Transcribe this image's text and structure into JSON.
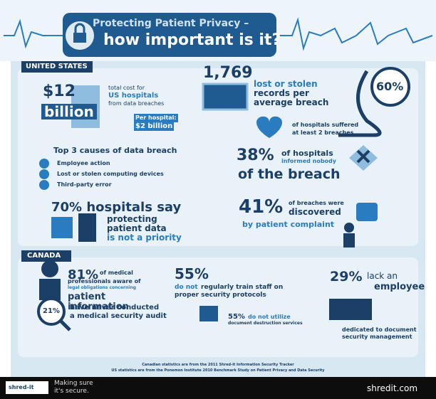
{
  "header": {
    "title_line1": "Protecting Patient Privacy –",
    "title_line2": "how important is it?"
  },
  "us": {
    "label": "UNITED STATES",
    "cost": {
      "amount": "$12",
      "unit": "billion",
      "desc1": "total cost for",
      "desc2": "US hospitals",
      "desc3": "from data breaches",
      "per_label": "Per hospital:",
      "per_value": "$2 billion"
    },
    "records": {
      "number": "1,769",
      "line1": "lost or stolen",
      "line2": "records per",
      "line3": "average breach"
    },
    "repeat": {
      "number": "60%",
      "line1": "of hospitals suffered",
      "line2": "at least 2 breaches"
    },
    "causes": {
      "title": "Top 3 causes of data breach",
      "items": [
        "Employee action",
        "Lost or stolen computing devices",
        "Third-party error"
      ]
    },
    "informed": {
      "number": "38%",
      "line1": "of hospitals",
      "line2": "informed nobody",
      "line3": "of the breach"
    },
    "priority": {
      "headline": "70% hospitals say",
      "line1": "protecting",
      "line2": "patient data",
      "line3": "is not a priority"
    },
    "discovered": {
      "number": "41%",
      "line1": "of breaches were",
      "line2": "discovered",
      "line3": "by patient complaint"
    }
  },
  "canada": {
    "label": "CANADA",
    "aware": {
      "number": "81%",
      "line1": "of medical",
      "line2": "professionals aware of",
      "line3": "legal obligations concerning",
      "line4": "patient",
      "line5": "information"
    },
    "train": {
      "number": "55%",
      "line1": "do not",
      "line2": "regularly train staff on",
      "line3": "proper security protocols"
    },
    "lack": {
      "number": "29%",
      "line1": "lack an",
      "line2": "employee",
      "line3": "dedicated to document",
      "line4": "security management"
    },
    "audit": {
      "number": "21%",
      "line1": "have never conducted",
      "line2": "a medical security audit"
    },
    "destruction": {
      "number": "55%",
      "line1": "do not utilize",
      "line2": "document destruction services"
    }
  },
  "sources": [
    "Canadian statistics are from the 2011 Shred-it Information Security Tracker",
    "US statistics are from the Ponemon Institute 2010 Benchmark Study on Patient Privacy and Data Security"
  ],
  "footer": {
    "logo": "shred-it",
    "tagline1": "Making sure",
    "tagline2": "it's secure.",
    "url": "shredit.com"
  }
}
